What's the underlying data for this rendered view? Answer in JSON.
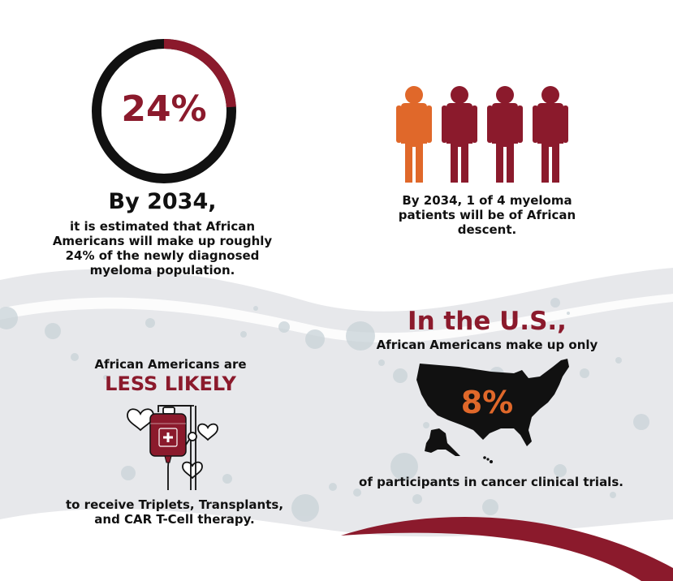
{
  "colors": {
    "maroon": "#8b1a2c",
    "orange": "#e0682a",
    "black": "#111111",
    "gray_band": "#e5e6e9",
    "bubble": "#cdd5da"
  },
  "stat_ring": {
    "percent_text": "24%",
    "fill_fraction": 0.24,
    "year_heading": "By 2034,",
    "description": [
      "it is estimated that African",
      "Americans will make up roughly",
      "24% of the newly diagnosed",
      "myeloma population."
    ]
  },
  "people_stat": {
    "highlighted": 1,
    "total": 4,
    "description": [
      "By 2034, 1 of 4 myeloma",
      "patients will be of African",
      "descent."
    ]
  },
  "less_likely": {
    "intro": "African Americans are",
    "emphasis": "LESS LIKELY",
    "description": [
      "to receive Triplets, Transplants,",
      "and CAR T-Cell therapy."
    ]
  },
  "us_stat": {
    "heading": "In the U.S.,",
    "subheading": "African Americans make up only",
    "percent_text": "8%",
    "description": "of participants in cancer clinical trials."
  }
}
